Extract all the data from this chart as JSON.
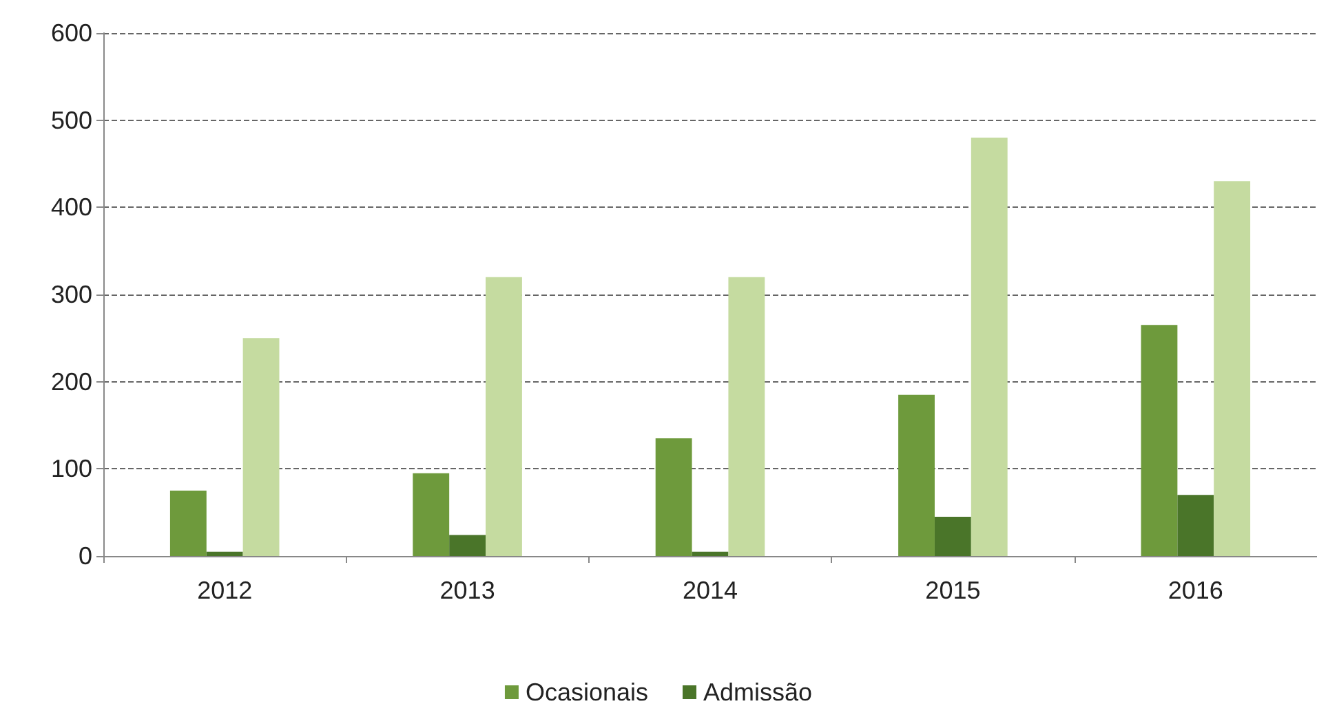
{
  "chart_data": {
    "type": "bar",
    "categories": [
      "2012",
      "2013",
      "2014",
      "2015",
      "2016"
    ],
    "series": [
      {
        "name": "Ocasionais",
        "color": "#6e9a3c",
        "values": [
          75,
          95,
          135,
          185,
          265
        ]
      },
      {
        "name": "Admissão",
        "color": "#4a7529",
        "values": [
          5,
          24,
          5,
          45,
          70
        ]
      },
      {
        "color": "#c5dba0",
        "values": [
          250,
          320,
          320,
          480,
          430
        ]
      }
    ],
    "ylim": [
      0,
      600
    ],
    "yticks": [
      0,
      100,
      200,
      300,
      400,
      500,
      600
    ],
    "grid": "y",
    "legend": "bottom"
  }
}
